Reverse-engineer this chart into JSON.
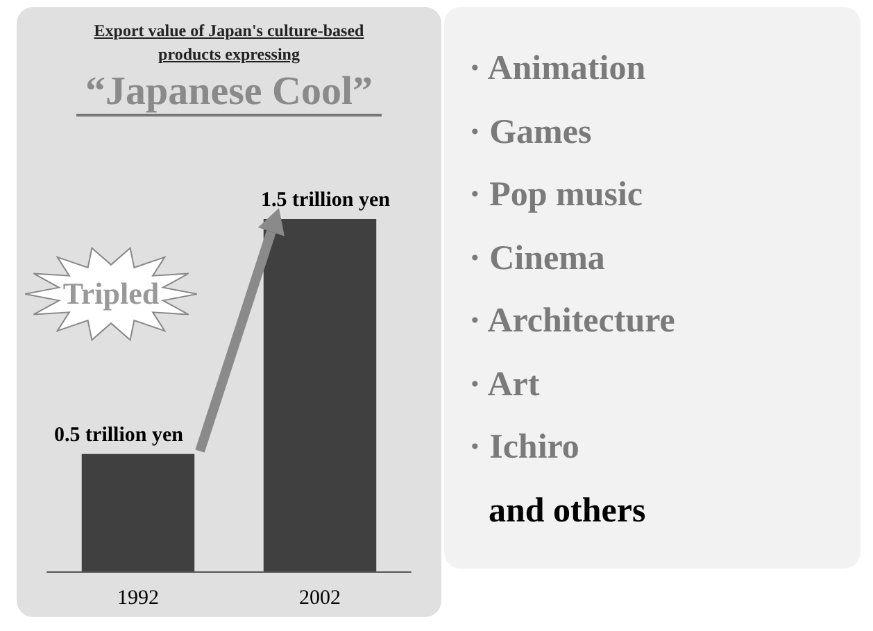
{
  "chart_data": [
    {
      "type": "bar",
      "title": "Export value of Japan's culture-based products expressing",
      "subtitle": "“Japanese Cool”",
      "categories": [
        "1992",
        "2002"
      ],
      "values": [
        0.5,
        1.5
      ],
      "value_labels": [
        "0.5 trillion yen",
        "1.5 trillion yen"
      ],
      "color": "#404040",
      "tick_labels": "x",
      "annotations": [
        "Tripled"
      ]
    },
    {
      "type": "other",
      "annotations": [
        "· Animation",
        "· Games",
        "· Pop music",
        "· Cinema",
        "· Architecture",
        "· Art",
        "· Ichiro",
        "and others"
      ]
    }
  ]
}
